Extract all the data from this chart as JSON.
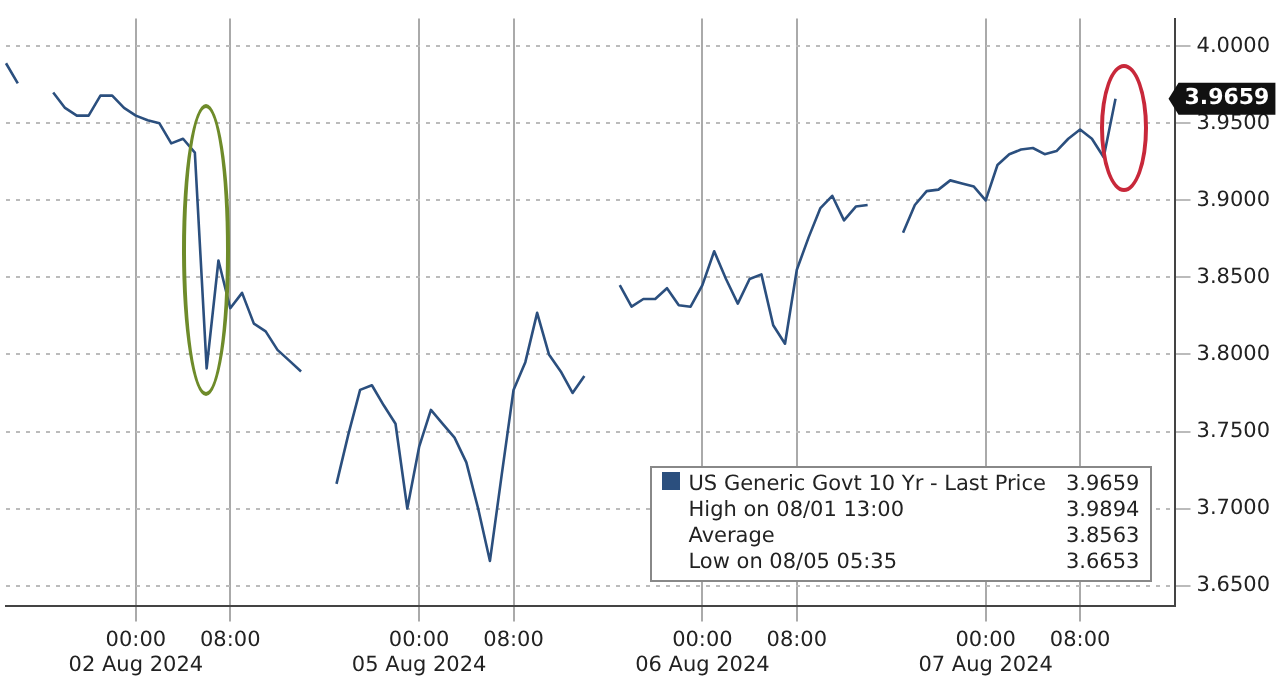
{
  "chart_data": {
    "type": "line",
    "legend": "bottom right",
    "grid": true,
    "marker": "none",
    "line_style": "solid",
    "categories": [
      null,
      null,
      null,
      null,
      null,
      null,
      null,
      null,
      null,
      null,
      null,
      "00:00\n02 Aug 2024",
      null,
      null,
      null,
      null,
      null,
      null,
      null,
      "08:00",
      null,
      null,
      null,
      null,
      null,
      null,
      null,
      null,
      null,
      null,
      null,
      null,
      null,
      null,
      null,
      "00:00\n05 Aug 2024",
      null,
      null,
      null,
      null,
      null,
      null,
      null,
      "08:00",
      null,
      null,
      null,
      null,
      null,
      null,
      null,
      null,
      null,
      null,
      null,
      null,
      null,
      null,
      null,
      "00:00\n06 Aug 2024",
      null,
      null,
      null,
      null,
      null,
      null,
      null,
      "08:00",
      null,
      null,
      null,
      null,
      null,
      null,
      null,
      null,
      null,
      null,
      null,
      null,
      null,
      null,
      null,
      "00:00\n07 Aug 2024",
      null,
      null,
      null,
      null,
      null,
      null,
      null,
      "08:00",
      null,
      null,
      null,
      null,
      null,
      null,
      null,
      null
    ],
    "ylim": [
      3.637,
      4.018
    ],
    "yticks": [
      {
        "value": 3.65,
        "label": "3.6500"
      },
      {
        "value": 3.7,
        "label": "3.7000"
      },
      {
        "value": 3.75,
        "label": "3.7500"
      },
      {
        "value": 3.8,
        "label": "3.8000"
      },
      {
        "value": 3.85,
        "label": "3.8500"
      },
      {
        "value": 3.9,
        "label": "3.9000"
      },
      {
        "value": 3.95,
        "label": "3.9500"
      },
      {
        "value": 4.0,
        "label": "4.0000"
      }
    ],
    "series": [
      {
        "name": "US Generic Govt 10 Yr - Last Price",
        "color": "#2b4f7e",
        "values": [
          3.989,
          3.976,
          null,
          null,
          3.97,
          3.96,
          3.955,
          3.955,
          3.968,
          3.968,
          3.96,
          3.955,
          3.952,
          3.95,
          3.937,
          3.94,
          3.931,
          3.791,
          3.861,
          3.83,
          3.84,
          3.82,
          3.815,
          3.803,
          3.796,
          3.789,
          null,
          null,
          3.716,
          3.748,
          3.777,
          3.78,
          3.767,
          3.755,
          3.7,
          3.74,
          3.764,
          3.755,
          3.746,
          3.73,
          3.7,
          3.666,
          3.722,
          3.777,
          3.795,
          3.827,
          3.8,
          3.789,
          3.775,
          3.786,
          null,
          null,
          3.845,
          3.831,
          3.836,
          3.836,
          3.843,
          3.832,
          3.831,
          3.845,
          3.867,
          3.849,
          3.833,
          3.849,
          3.852,
          3.819,
          3.807,
          3.855,
          3.876,
          3.895,
          3.903,
          3.887,
          3.896,
          3.897,
          null,
          null,
          3.879,
          3.897,
          3.906,
          3.907,
          3.913,
          3.911,
          3.909,
          3.9,
          3.923,
          3.93,
          3.933,
          3.934,
          3.93,
          3.932,
          3.94,
          3.946,
          3.94,
          3.928,
          3.966,
          null,
          null,
          null,
          null,
          null
        ]
      }
    ],
    "annotations": [
      "3.9659",
      "3.9659",
      "High on 08/01 13:00",
      "3.9894",
      "Average",
      "3.8563",
      "Low on 08/05 05:35",
      "3.6653"
    ]
  }
}
